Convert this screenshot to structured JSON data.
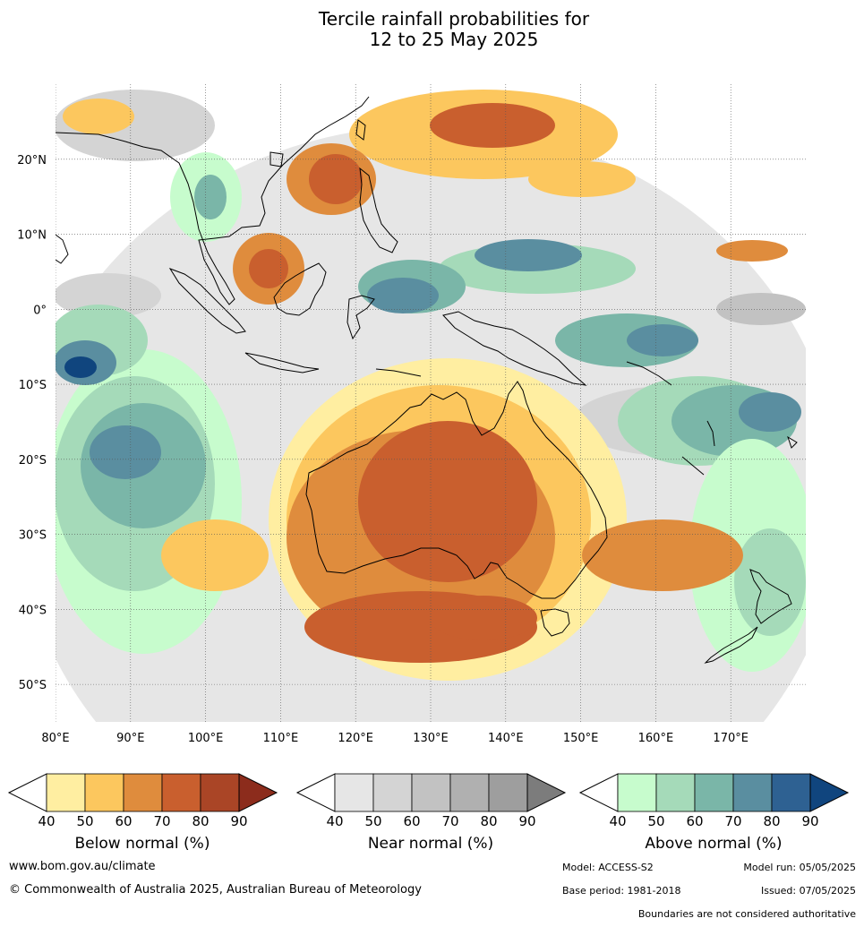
{
  "title_line1": "Tercile rainfall probabilities for",
  "title_line2": "12 to 25 May 2025",
  "map": {
    "extent": {
      "lon_min": 80,
      "lon_max": 180,
      "lat_min": -55,
      "lat_max": 30
    },
    "lon_ticks": [
      80,
      90,
      100,
      110,
      120,
      130,
      140,
      150,
      160,
      170
    ],
    "lon_labels": [
      "80°E",
      "90°E",
      "100°E",
      "110°E",
      "120°E",
      "130°E",
      "140°E",
      "150°E",
      "160°E",
      "170°E"
    ],
    "lat_ticks": [
      20,
      10,
      0,
      -10,
      -20,
      -30,
      -40,
      -50
    ],
    "lat_labels": [
      "20°N",
      "10°N",
      "0°",
      "10°S",
      "20°S",
      "30°S",
      "40°S",
      "50°S"
    ],
    "colors": {
      "below": [
        "#ffeea1",
        "#fcc75e",
        "#df8c3d",
        "#c95f2e",
        "#aa4526",
        "#8c2c1c"
      ],
      "near": [
        "#e6e6e6",
        "#d4d4d4",
        "#c2c2c2",
        "#b0b0b0",
        "#9e9e9e",
        "#7c7c7c"
      ],
      "above": [
        "#c7fccd",
        "#a5dab9",
        "#7ab6a8",
        "#5a8ea0",
        "#2e6192",
        "#10457e"
      ]
    }
  },
  "colorbars": [
    {
      "label": "Below normal (%)",
      "ticks": [
        "40",
        "50",
        "60",
        "70",
        "80",
        "90"
      ]
    },
    {
      "label": "Near normal (%)",
      "ticks": [
        "40",
        "50",
        "60",
        "70",
        "80",
        "90"
      ]
    },
    {
      "label": "Above normal (%)",
      "ticks": [
        "40",
        "50",
        "60",
        "70",
        "80",
        "90"
      ]
    }
  ],
  "footer": {
    "url": "www.bom.gov.au/climate",
    "copyright": "© Commonwealth of Australia 2025, Australian Bureau of Meteorology",
    "model": "Model: ACCESS-S2",
    "model_run": "Model run: 05/05/2025",
    "base_period": "Base period: 1981-2018",
    "issued": "Issued: 07/05/2025",
    "disclaimer": "Boundaries are not considered authoritative"
  }
}
